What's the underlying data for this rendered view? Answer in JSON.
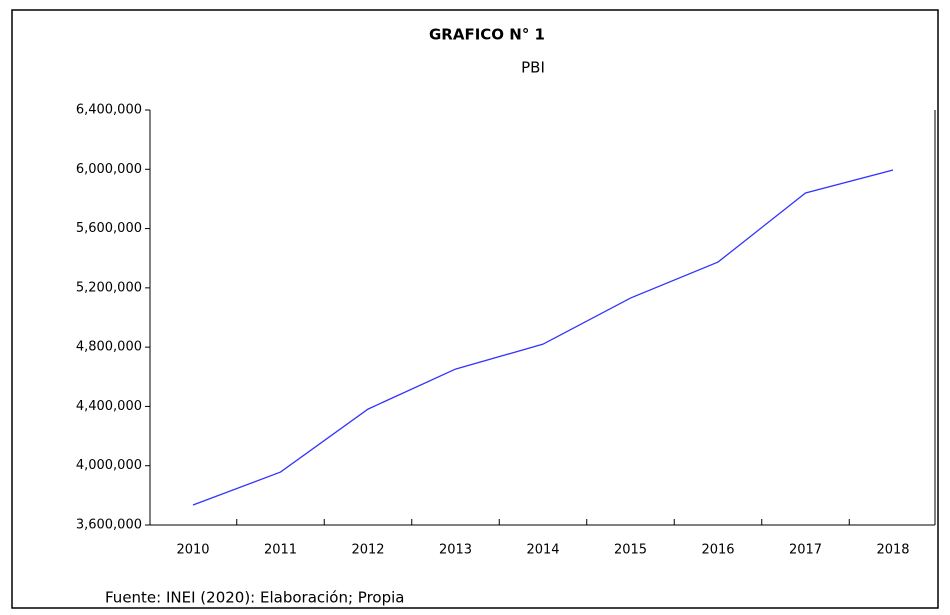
{
  "chart_data": {
    "type": "line",
    "title": "GRAFICO N° 1",
    "subtitle": "PBI",
    "categories": [
      "2010",
      "2011",
      "2012",
      "2013",
      "2014",
      "2015",
      "2016",
      "2017",
      "2018"
    ],
    "series": [
      {
        "name": "PBI",
        "color": "#3333ff",
        "values": [
          3735000,
          3957000,
          4382000,
          4652000,
          4820000,
          5131000,
          5374000,
          5840000,
          5995000
        ]
      }
    ],
    "ylim": [
      3600000,
      6400000
    ],
    "yticks": [
      {
        "value": 3600000,
        "label": "3,600,000"
      },
      {
        "value": 4000000,
        "label": "4,000,000"
      },
      {
        "value": 4400000,
        "label": "4,400,000"
      },
      {
        "value": 4800000,
        "label": "4,800,000"
      },
      {
        "value": 5200000,
        "label": "5,200,000"
      },
      {
        "value": 5600000,
        "label": "5,600,000"
      },
      {
        "value": 6000000,
        "label": "6,000,000"
      },
      {
        "value": 6400000,
        "label": "6,400,000"
      }
    ],
    "grid": false,
    "note": "Fuente: INEI (2020): Elaboración; Propia"
  }
}
